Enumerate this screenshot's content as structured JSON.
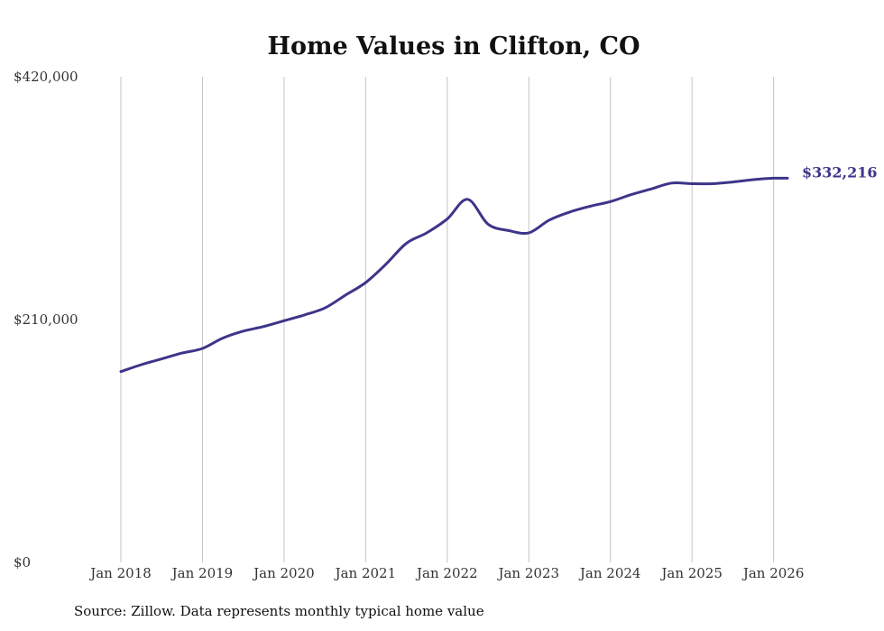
{
  "chart_data": {
    "type": "line",
    "title": "Home Values in Clifton, CO",
    "xlabel": "",
    "ylabel": "",
    "ylim": [
      0,
      420000
    ],
    "yticks": [
      0,
      210000,
      420000
    ],
    "ytick_labels": [
      "$0",
      "$210,000",
      "$420,000"
    ],
    "xlim": [
      2018.0,
      2026.17
    ],
    "xticks": [
      2018,
      2019,
      2020,
      2021,
      2022,
      2023,
      2024,
      2025,
      2026
    ],
    "xtick_labels": [
      "Jan 2018",
      "Jan 2019",
      "Jan 2020",
      "Jan 2021",
      "Jan 2022",
      "Jan 2023",
      "Jan 2024",
      "Jan 2025",
      "Jan 2026"
    ],
    "grid": "vertical",
    "series": [
      {
        "name": "Typical home value",
        "color": "#3d3589",
        "x": [
          2018.0,
          2018.25,
          2018.5,
          2018.75,
          2019.0,
          2019.25,
          2019.5,
          2019.75,
          2020.0,
          2020.25,
          2020.5,
          2020.75,
          2021.0,
          2021.25,
          2021.5,
          2021.75,
          2022.0,
          2022.25,
          2022.5,
          2022.75,
          2023.0,
          2023.25,
          2023.5,
          2023.75,
          2024.0,
          2024.25,
          2024.5,
          2024.75,
          2025.0,
          2025.25,
          2025.5,
          2025.75,
          2026.0,
          2026.17
        ],
        "values": [
          165000,
          171000,
          176000,
          181000,
          185000,
          194000,
          200000,
          204000,
          209000,
          214000,
          220000,
          231000,
          242000,
          258000,
          276000,
          285000,
          297000,
          314000,
          292500,
          287000,
          285000,
          296000,
          303000,
          308000,
          312000,
          318000,
          323000,
          328000,
          327500,
          327500,
          329000,
          331000,
          332216,
          332216
        ],
        "end_label": "$332,216"
      }
    ]
  },
  "source_text": "Source: Zillow. Data represents monthly typical home value"
}
